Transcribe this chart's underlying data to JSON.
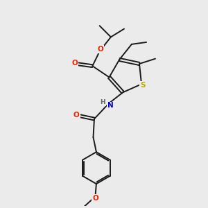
{
  "background_color": "#ebebeb",
  "bond_color": "#1a1a1a",
  "atom_colors": {
    "O": "#ee2200",
    "N": "#0000dd",
    "S": "#bbaa00",
    "C": "#1a1a1a",
    "H": "#666666"
  },
  "figsize": [
    3.0,
    3.0
  ],
  "dpi": 100,
  "lw": 1.4,
  "fs": 7.5
}
